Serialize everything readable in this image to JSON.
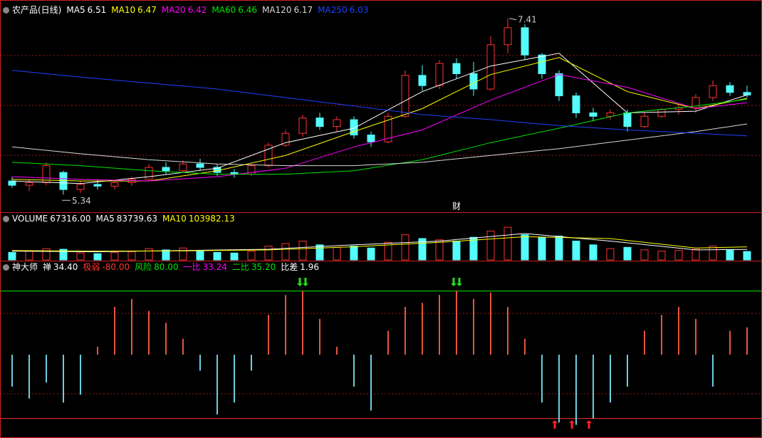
{
  "chart_data": [
    {
      "type": "candlestick",
      "title": "农产品(日线)",
      "up_color": "#ff3232",
      "down_color": "#54fcfc",
      "ylim": [
        5.2,
        7.5
      ],
      "open": [
        5.5,
        5.45,
        5.48,
        5.6,
        5.4,
        5.46,
        5.44,
        5.48,
        5.52,
        5.66,
        5.62,
        5.7,
        5.66,
        5.6,
        5.58,
        5.68,
        5.92,
        6.06,
        6.24,
        6.14,
        6.22,
        6.04,
        5.96,
        6.26,
        6.74,
        6.62,
        6.88,
        6.76,
        6.58,
        7.1,
        7.3,
        6.98,
        6.76,
        6.5,
        6.3,
        6.26,
        6.3,
        6.14,
        6.26,
        6.34,
        6.36,
        6.48,
        6.62,
        6.54
      ],
      "high": [
        5.55,
        5.52,
        5.72,
        5.62,
        5.5,
        5.52,
        5.5,
        5.55,
        5.7,
        5.72,
        5.74,
        5.76,
        5.7,
        5.64,
        5.7,
        5.95,
        6.1,
        6.28,
        6.3,
        6.26,
        6.26,
        6.08,
        6.3,
        6.8,
        6.86,
        6.92,
        6.94,
        6.9,
        7.2,
        7.41,
        7.34,
        7.0,
        6.8,
        6.54,
        6.36,
        6.34,
        6.34,
        6.3,
        6.36,
        6.4,
        6.52,
        6.68,
        6.66,
        6.62
      ],
      "low": [
        5.42,
        5.38,
        5.45,
        5.34,
        5.36,
        5.4,
        5.4,
        5.44,
        5.5,
        5.58,
        5.6,
        5.62,
        5.56,
        5.54,
        5.56,
        5.66,
        5.9,
        6.02,
        6.1,
        6.08,
        6.0,
        5.9,
        5.94,
        6.24,
        6.56,
        6.58,
        6.7,
        6.5,
        6.56,
        7.0,
        6.92,
        6.7,
        6.44,
        6.24,
        6.2,
        6.22,
        6.08,
        6.12,
        6.24,
        6.28,
        6.3,
        6.44,
        6.5,
        6.48
      ],
      "close": [
        5.45,
        5.48,
        5.68,
        5.4,
        5.46,
        5.44,
        5.48,
        5.52,
        5.66,
        5.62,
        5.7,
        5.66,
        5.6,
        5.58,
        5.68,
        5.92,
        6.06,
        6.24,
        6.14,
        6.22,
        6.04,
        5.96,
        6.26,
        6.74,
        6.62,
        6.88,
        6.76,
        6.58,
        7.1,
        7.3,
        6.98,
        6.76,
        6.5,
        6.3,
        6.26,
        6.3,
        6.14,
        6.26,
        6.34,
        6.36,
        6.48,
        6.62,
        6.54,
        6.51
      ],
      "series": [
        {
          "name": "MA5",
          "color": "#ffffff",
          "x": [
            0,
            4,
            8,
            12,
            16,
            20,
            24,
            28,
            32,
            36,
            40,
            43
          ],
          "values": [
            5.5,
            5.47,
            5.55,
            5.65,
            5.95,
            6.12,
            6.55,
            6.85,
            7.0,
            6.3,
            6.32,
            6.51
          ]
        },
        {
          "name": "MA10",
          "color": "#ffff00",
          "x": [
            0,
            4,
            8,
            12,
            16,
            20,
            24,
            28,
            32,
            36,
            40,
            43
          ],
          "values": [
            5.52,
            5.5,
            5.5,
            5.62,
            5.8,
            6.08,
            6.35,
            6.75,
            6.95,
            6.55,
            6.35,
            6.47
          ]
        },
        {
          "name": "MA20",
          "color": "#ff00ff",
          "x": [
            0,
            4,
            8,
            12,
            16,
            20,
            24,
            28,
            32,
            36,
            40,
            43
          ],
          "values": [
            5.55,
            5.52,
            5.5,
            5.55,
            5.65,
            5.9,
            6.1,
            6.45,
            6.75,
            6.6,
            6.35,
            6.42
          ]
        },
        {
          "name": "MA60",
          "color": "#00e600",
          "x": [
            0,
            4,
            8,
            12,
            16,
            20,
            24,
            28,
            32,
            36,
            40,
            43
          ],
          "values": [
            5.72,
            5.68,
            5.62,
            5.58,
            5.58,
            5.62,
            5.75,
            5.95,
            6.12,
            6.3,
            6.38,
            6.46
          ]
        },
        {
          "name": "MA120",
          "color": "#d8d8d8",
          "x": [
            0,
            4,
            8,
            12,
            16,
            20,
            24,
            28,
            32,
            36,
            40,
            43
          ],
          "values": [
            5.9,
            5.82,
            5.75,
            5.7,
            5.68,
            5.68,
            5.72,
            5.8,
            5.88,
            5.98,
            6.08,
            6.17
          ]
        },
        {
          "name": "MA250",
          "color": "#2040ff",
          "x": [
            0,
            4,
            8,
            12,
            16,
            20,
            24,
            28,
            32,
            36,
            40,
            43
          ],
          "values": [
            6.8,
            6.72,
            6.65,
            6.58,
            6.48,
            6.38,
            6.28,
            6.22,
            6.15,
            6.1,
            6.06,
            6.03
          ]
        }
      ],
      "annotations": [
        {
          "text": "财",
          "x": 26
        }
      ]
    },
    {
      "type": "volume",
      "title": "VOLUME",
      "ylim": [
        0,
        300000
      ],
      "values": [
        60000,
        70000,
        90000,
        85000,
        55000,
        50000,
        60000,
        65000,
        90000,
        80000,
        95000,
        70000,
        60000,
        55000,
        70000,
        110000,
        130000,
        150000,
        120000,
        100000,
        110000,
        95000,
        140000,
        200000,
        170000,
        160000,
        150000,
        180000,
        230000,
        260000,
        200000,
        180000,
        190000,
        150000,
        120000,
        90000,
        100000,
        80000,
        70000,
        75000,
        85000,
        110000,
        80000,
        67316
      ],
      "value_labels": [
        null,
        null,
        null,
        null,
        null,
        null,
        null,
        null,
        null,
        null,
        null,
        null,
        null,
        null,
        null,
        null,
        null,
        null,
        null,
        null,
        null,
        null,
        null,
        null,
        null,
        null,
        null,
        null,
        null,
        null,
        null,
        null,
        null,
        null,
        null,
        null,
        null,
        null,
        null,
        null,
        null,
        null,
        null,
        "67316.00"
      ],
      "series": [
        {
          "name": "MA5",
          "color": "#ffffff",
          "x": [
            0,
            5,
            10,
            15,
            20,
            25,
            30,
            35,
            40,
            43
          ],
          "values": [
            70000,
            65000,
            75000,
            85000,
            120000,
            150000,
            210000,
            150000,
            80000,
            83739.63
          ]
        },
        {
          "name": "MA10",
          "color": "#ffff00",
          "x": [
            0,
            5,
            10,
            15,
            20,
            25,
            30,
            35,
            40,
            43
          ],
          "values": [
            75000,
            70000,
            72000,
            80000,
            105000,
            140000,
            185000,
            170000,
            95000,
            103982.13
          ]
        }
      ]
    },
    {
      "type": "indicator",
      "title": "神大师",
      "name": "禅",
      "pos_color": "#e8553d",
      "neg_color": "#6ad0e0",
      "ylim": [
        -100,
        110
      ],
      "values": [
        -40,
        -55,
        -35,
        -60,
        -50,
        10,
        60,
        70,
        55,
        40,
        20,
        -20,
        -75,
        -60,
        -20,
        50,
        75,
        80,
        45,
        10,
        -40,
        -70,
        30,
        60,
        65,
        75,
        80,
        70,
        78,
        60,
        20,
        -60,
        -85,
        -88,
        -80,
        -60,
        -40,
        30,
        50,
        60,
        45,
        -40,
        30,
        34.4
      ],
      "value_labels": [
        null,
        null,
        null,
        null,
        null,
        null,
        null,
        null,
        null,
        null,
        null,
        null,
        null,
        null,
        null,
        null,
        null,
        null,
        null,
        null,
        null,
        null,
        null,
        null,
        null,
        null,
        null,
        null,
        null,
        null,
        null,
        null,
        null,
        null,
        null,
        null,
        null,
        null,
        null,
        null,
        null,
        null,
        null,
        "34.40"
      ],
      "levels": [
        {
          "name": "极弱",
          "value": -80,
          "value_label": "-80.00",
          "color": "#ff3232"
        },
        {
          "name": "风险",
          "value": 80,
          "value_label": "80.00",
          "color": "#00e600"
        }
      ],
      "stats": [
        {
          "name": "一比",
          "value": 33.24,
          "color": "#ff00ff"
        },
        {
          "name": "二比",
          "value": 35.2,
          "value_label": "35.20",
          "color": "#00e600"
        },
        {
          "name": "比差",
          "value": 1.96,
          "color": "#ffffff"
        }
      ],
      "sell_signals": [
        17,
        26
      ],
      "buy_signals": [
        32,
        33,
        34
      ]
    }
  ]
}
